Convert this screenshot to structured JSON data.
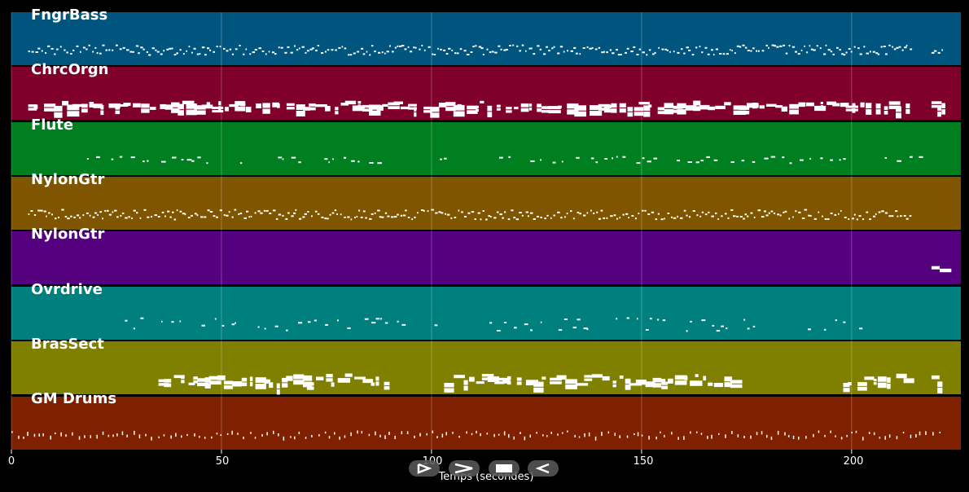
{
  "xaxis": {
    "title": "Temps (secondes)",
    "ticks": [
      0,
      50,
      100,
      150,
      200
    ],
    "tick_labels": [
      "0",
      "50",
      "100",
      "150",
      "200"
    ],
    "range": [
      0,
      226
    ]
  },
  "colors": {
    "background": "#000000",
    "note": "#ffffff",
    "gridline": "rgba(255,255,255,0.25)"
  },
  "tracks": [
    {
      "name": "FngrBass",
      "color": "#00557f",
      "segments": [
        [
          4,
          214
        ],
        [
          219,
          222
        ]
      ],
      "density": "dense",
      "rows": 3
    },
    {
      "name": "ChrcOrgn",
      "color": "#7f002a",
      "segments": [
        [
          4,
          214
        ],
        [
          219,
          222
        ]
      ],
      "density": "chords",
      "rows": 2
    },
    {
      "name": "Flute",
      "color": "#007f20",
      "segments": [
        [
          18,
          88
        ],
        [
          102,
          214
        ],
        [
          216,
          218
        ]
      ],
      "density": "sparse",
      "rows": 2
    },
    {
      "name": "NylonGtr",
      "color": "#7f5500",
      "segments": [
        [
          4,
          214
        ]
      ],
      "density": "dense",
      "rows": 3
    },
    {
      "name": "NylonGtr",
      "color": "#55007f",
      "segments": [
        [
          219,
          222
        ]
      ],
      "density": "chords",
      "rows": 2
    },
    {
      "name": "Ovrdrive",
      "color": "#007f7f",
      "segments": [
        [
          27,
          101
        ],
        [
          111,
          205
        ]
      ],
      "density": "sparse",
      "rows": 4
    },
    {
      "name": "BrasSect",
      "color": "#7f7f00",
      "segments": [
        [
          35,
          90
        ],
        [
          103,
          172
        ],
        [
          198,
          214
        ],
        [
          219,
          222
        ]
      ],
      "density": "chords",
      "rows": 3
    },
    {
      "name": "GM Drums",
      "color": "#7f2000",
      "segments": [
        [
          0,
          222
        ]
      ],
      "density": "drums",
      "rows": 2
    }
  ],
  "controls": [
    {
      "name": "play-button",
      "icon": "play-icon"
    },
    {
      "name": "fast-forward-button",
      "icon": "fast-forward-icon"
    },
    {
      "name": "stop-button",
      "icon": "stop-icon"
    },
    {
      "name": "rewind-button",
      "icon": "rewind-icon"
    }
  ]
}
